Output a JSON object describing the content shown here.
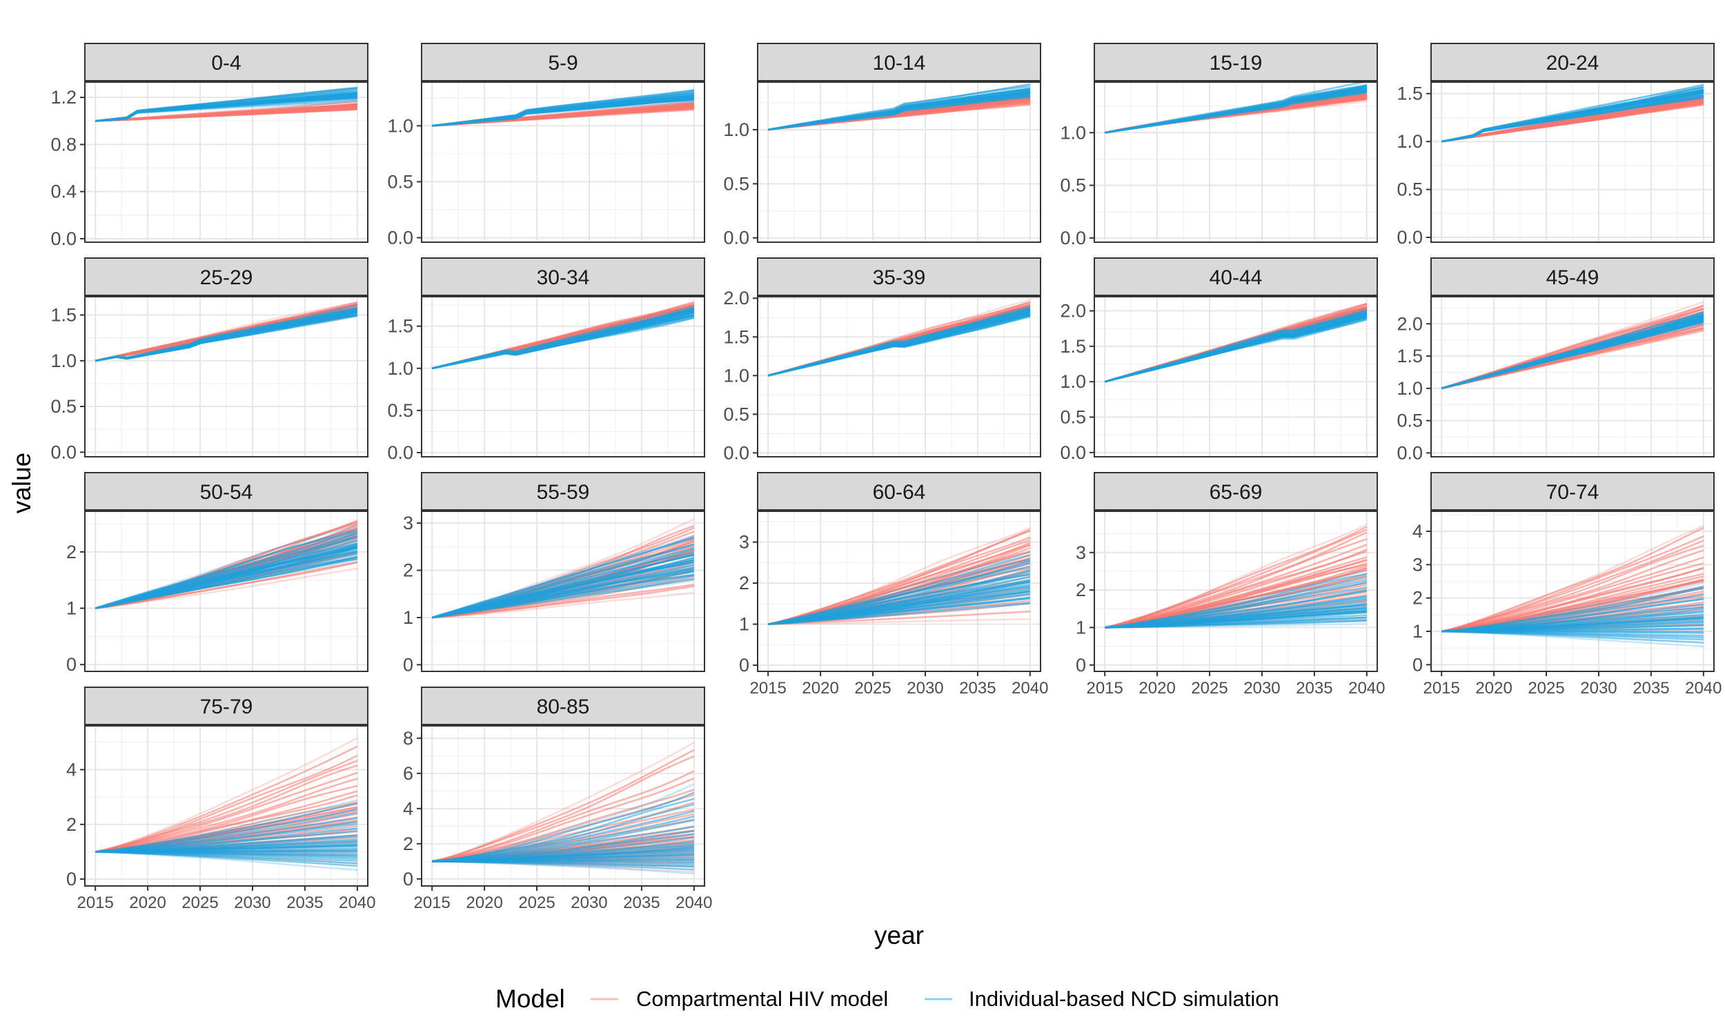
{
  "chart_data": {
    "type": "line",
    "xlabel": "year",
    "ylabel": "value",
    "x_ticks": [
      2015,
      2020,
      2025,
      2030,
      2035,
      2040
    ],
    "xlim": [
      2014,
      2041
    ],
    "legend": {
      "title": "Model",
      "position": "bottom",
      "entries": [
        {
          "name": "Compartmental HIV model",
          "color": "#f8766d"
        },
        {
          "name": "Individual-based NCD simulation",
          "color": "#1ea0dc"
        }
      ]
    },
    "colors": {
      "hiv": "#f8766d",
      "ncd": "#1ea0dc"
    },
    "grid": true,
    "series": [
      {
        "name": "Compartmental HIV model",
        "color": "#f8766d"
      },
      {
        "name": "Individual-based NCD simulation",
        "color": "#1ea0dc"
      }
    ],
    "panels": [
      {
        "label": "0-4",
        "ylim": [
          -0.03,
          1.33
        ],
        "y_ticks": [
          0.0,
          0.4,
          0.8,
          1.2
        ],
        "y_tick_labels": [
          "0.0",
          "0.4",
          "0.8",
          "1.2"
        ],
        "hiv": {
          "end_lo": 1.11,
          "end_mid": 1.13,
          "end_hi": 1.15,
          "shape": 0.05
        },
        "ncd": {
          "end_lo": 1.14,
          "end_mid": 1.2,
          "end_hi": 1.25,
          "shape": 0.0,
          "bumps": [
            [
              2019,
              0.05
            ]
          ]
        }
      },
      {
        "label": "5-9",
        "ylim": [
          -0.04,
          1.39
        ],
        "y_ticks": [
          0.0,
          0.5,
          1.0
        ],
        "y_tick_labels": [
          "0.0",
          "0.5",
          "1.0"
        ],
        "hiv": {
          "end_lo": 1.15,
          "end_mid": 1.18,
          "end_hi": 1.22,
          "shape": 0.0
        },
        "ncd": {
          "end_lo": 1.2,
          "end_mid": 1.24,
          "end_hi": 1.29,
          "shape": 0.0,
          "bumps": [
            [
              2024,
              0.04
            ]
          ]
        }
      },
      {
        "label": "10-14",
        "ylim": [
          -0.04,
          1.44
        ],
        "y_ticks": [
          0.0,
          0.5,
          1.0
        ],
        "y_tick_labels": [
          "0.0",
          "0.5",
          "1.0"
        ],
        "hiv": {
          "end_lo": 1.24,
          "end_mid": 1.28,
          "end_hi": 1.32,
          "shape": -0.05
        },
        "ncd": {
          "end_lo": 1.28,
          "end_mid": 1.33,
          "end_hi": 1.38,
          "shape": -0.05,
          "bumps": [
            [
              2028,
              0.04
            ]
          ]
        }
      },
      {
        "label": "15-19",
        "ylim": [
          -0.04,
          1.48
        ],
        "y_ticks": [
          0.0,
          0.5,
          1.0
        ],
        "y_tick_labels": [
          "0.0",
          "0.5",
          "1.0"
        ],
        "hiv": {
          "end_lo": 1.3,
          "end_mid": 1.34,
          "end_hi": 1.38,
          "shape": -0.1
        },
        "ncd": {
          "end_lo": 1.36,
          "end_mid": 1.4,
          "end_hi": 1.44,
          "shape": 0.0,
          "bumps": [
            [
              2033,
              0.03
            ]
          ]
        }
      },
      {
        "label": "20-24",
        "ylim": [
          -0.05,
          1.62
        ],
        "y_ticks": [
          0.0,
          0.5,
          1.0,
          1.5
        ],
        "y_tick_labels": [
          "0.0",
          "0.5",
          "1.0",
          "1.5"
        ],
        "hiv": {
          "end_lo": 1.38,
          "end_mid": 1.43,
          "end_hi": 1.48,
          "shape": 0.0
        },
        "ncd": {
          "end_lo": 1.44,
          "end_mid": 1.5,
          "end_hi": 1.55,
          "shape": 0.0,
          "bumps": [
            [
              2019,
              0.04
            ]
          ]
        }
      },
      {
        "label": "25-29",
        "ylim": [
          -0.05,
          1.7
        ],
        "y_ticks": [
          0.0,
          0.5,
          1.0,
          1.5
        ],
        "y_tick_labels": [
          "0.0",
          "0.5",
          "1.0",
          "1.5"
        ],
        "hiv": {
          "end_lo": 1.52,
          "end_mid": 1.58,
          "end_hi": 1.63,
          "shape": 0.0
        },
        "ncd": {
          "end_lo": 1.5,
          "end_mid": 1.55,
          "end_hi": 1.6,
          "shape": 0.0,
          "bumps": [
            [
              2018,
              -0.04
            ],
            [
              2025,
              0.03
            ]
          ]
        }
      },
      {
        "label": "30-34",
        "ylim": [
          -0.05,
          1.85
        ],
        "y_ticks": [
          0.0,
          0.5,
          1.0,
          1.5
        ],
        "y_tick_labels": [
          "0.0",
          "0.5",
          "1.0",
          "1.5"
        ],
        "hiv": {
          "end_lo": 1.66,
          "end_mid": 1.72,
          "end_hi": 1.78,
          "shape": 0.0
        },
        "ncd": {
          "end_lo": 1.64,
          "end_mid": 1.7,
          "end_hi": 1.75,
          "shape": 0.0,
          "bumps": [
            [
              2023,
              -0.05
            ]
          ]
        }
      },
      {
        "label": "35-39",
        "ylim": [
          -0.05,
          2.02
        ],
        "y_ticks": [
          0.0,
          0.5,
          1.0,
          1.5,
          2.0
        ],
        "y_tick_labels": [
          "0.0",
          "0.5",
          "1.0",
          "1.5",
          "2.0"
        ],
        "hiv": {
          "end_lo": 1.82,
          "end_mid": 1.88,
          "end_hi": 1.94,
          "shape": 0.0
        },
        "ncd": {
          "end_lo": 1.78,
          "end_mid": 1.84,
          "end_hi": 1.9,
          "shape": 0.0,
          "bumps": [
            [
              2028,
              -0.05
            ]
          ]
        }
      },
      {
        "label": "40-44",
        "ylim": [
          -0.06,
          2.2
        ],
        "y_ticks": [
          0.0,
          0.5,
          1.0,
          1.5,
          2.0
        ],
        "y_tick_labels": [
          "0.0",
          "0.5",
          "1.0",
          "1.5",
          "2.0"
        ],
        "hiv": {
          "end_lo": 1.95,
          "end_mid": 2.02,
          "end_hi": 2.1,
          "shape": 0.0
        },
        "ncd": {
          "end_lo": 1.92,
          "end_mid": 1.98,
          "end_hi": 2.05,
          "shape": 0.0,
          "bumps": [
            [
              2033,
              -0.06
            ]
          ]
        }
      },
      {
        "label": "45-49",
        "ylim": [
          -0.06,
          2.42
        ],
        "y_ticks": [
          0.0,
          0.5,
          1.0,
          1.5,
          2.0
        ],
        "y_tick_labels": [
          "0.0",
          "0.5",
          "1.0",
          "1.5",
          "2.0"
        ],
        "hiv": {
          "end_lo": 1.85,
          "end_mid": 2.1,
          "end_hi": 2.32,
          "shape": 0.0
        },
        "ncd": {
          "end_lo": 2.0,
          "end_mid": 2.1,
          "end_hi": 2.2,
          "shape": 0.0
        }
      },
      {
        "label": "50-54",
        "ylim": [
          -0.12,
          2.72
        ],
        "y_ticks": [
          0,
          1,
          2
        ],
        "y_tick_labels": [
          "0",
          "1",
          "2"
        ],
        "hiv": {
          "end_lo": 1.6,
          "end_mid": 2.3,
          "end_hi": 2.6,
          "shape": 0.1
        },
        "ncd": {
          "end_lo": 1.8,
          "end_mid": 2.1,
          "end_hi": 2.5,
          "shape": 0.0
        }
      },
      {
        "label": "55-59",
        "ylim": [
          -0.14,
          3.25
        ],
        "y_ticks": [
          0,
          1,
          2,
          3
        ],
        "y_tick_labels": [
          "0",
          "1",
          "2",
          "3"
        ],
        "hiv": {
          "end_lo": 1.4,
          "end_mid": 2.4,
          "end_hi": 3.05,
          "shape": 0.15
        },
        "ncd": {
          "end_lo": 1.7,
          "end_mid": 2.2,
          "end_hi": 2.8,
          "shape": 0.0
        }
      },
      {
        "label": "60-64",
        "ylim": [
          -0.15,
          3.75
        ],
        "y_ticks": [
          0,
          1,
          2,
          3
        ],
        "y_tick_labels": [
          "0",
          "1",
          "2",
          "3"
        ],
        "hiv": {
          "end_lo": 0.9,
          "end_mid": 2.6,
          "end_hi": 3.5,
          "shape": 0.15
        },
        "ncd": {
          "end_lo": 1.4,
          "end_mid": 2.0,
          "end_hi": 2.8,
          "shape": 0.1
        }
      },
      {
        "label": "65-69",
        "ylim": [
          -0.17,
          4.1
        ],
        "y_ticks": [
          0,
          1,
          2,
          3
        ],
        "y_tick_labels": [
          "0",
          "1",
          "2",
          "3"
        ],
        "hiv": {
          "end_lo": 1.0,
          "end_mid": 2.6,
          "end_hi": 3.85,
          "shape": 0.15
        },
        "ncd": {
          "end_lo": 1.0,
          "end_mid": 1.6,
          "end_hi": 2.6,
          "shape": 0.2
        }
      },
      {
        "label": "70-74",
        "ylim": [
          -0.2,
          4.6
        ],
        "y_ticks": [
          0,
          1,
          2,
          3,
          4
        ],
        "y_tick_labels": [
          "0",
          "1",
          "2",
          "3",
          "4"
        ],
        "hiv": {
          "end_lo": 0.8,
          "end_mid": 2.5,
          "end_hi": 4.3,
          "shape": 0.15
        },
        "ncd": {
          "end_lo": 0.4,
          "end_mid": 1.4,
          "end_hi": 2.5,
          "shape": 0.2
        }
      },
      {
        "label": "75-79",
        "ylim": [
          -0.25,
          5.6
        ],
        "y_ticks": [
          0,
          2,
          4
        ],
        "y_tick_labels": [
          "0",
          "2",
          "4"
        ],
        "hiv": {
          "end_lo": 0.3,
          "end_mid": 2.5,
          "end_hi": 5.3,
          "shape": 0.2
        },
        "ncd": {
          "end_lo": 0.2,
          "end_mid": 1.3,
          "end_hi": 3.0,
          "shape": 0.2
        }
      },
      {
        "label": "80-85",
        "ylim": [
          -0.4,
          8.7
        ],
        "y_ticks": [
          0,
          2,
          4,
          6,
          8
        ],
        "y_tick_labels": [
          "0",
          "2",
          "4",
          "6",
          "8"
        ],
        "hiv": {
          "end_lo": 0.1,
          "end_mid": 2.5,
          "end_hi": 8.2,
          "shape": 0.2
        },
        "ncd": {
          "end_lo": 0.1,
          "end_mid": 1.8,
          "end_hi": 5.5,
          "shape": 0.35
        }
      }
    ]
  }
}
